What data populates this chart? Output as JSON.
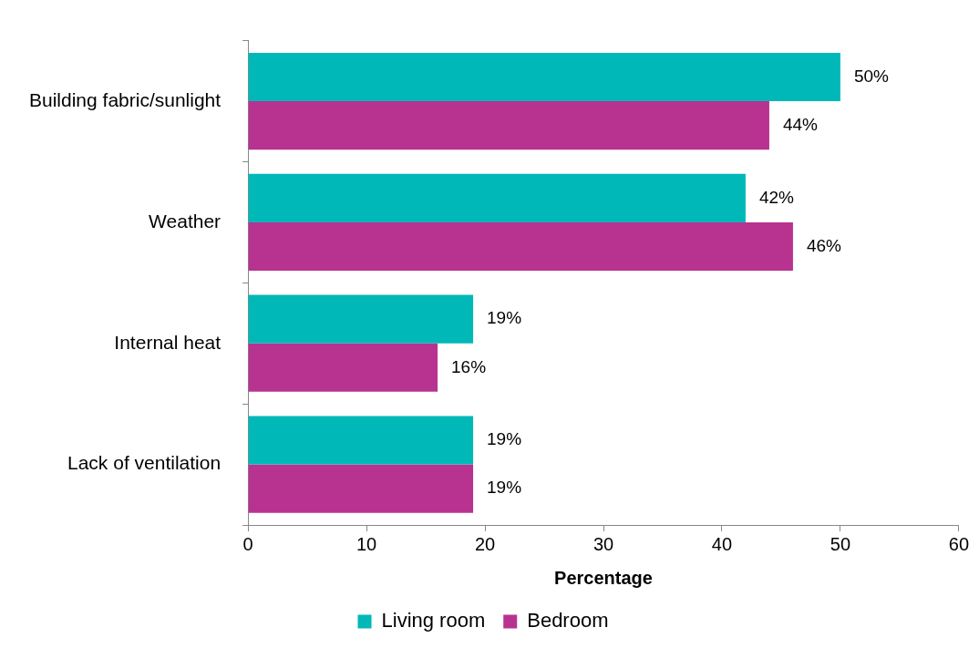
{
  "chart_data": {
    "type": "bar",
    "orientation": "horizontal",
    "xlabel": "Percentage",
    "categories": [
      "Building fabric/sunlight",
      "Weather",
      "Internal heat",
      "Lack of ventilation"
    ],
    "series": [
      {
        "name": "Living room",
        "color": "#00b8b8",
        "values": [
          50,
          42,
          19,
          19
        ],
        "value_labels": [
          "50%",
          "42%",
          "19%",
          "19%"
        ]
      },
      {
        "name": "Bedroom",
        "color": "#b83290",
        "values": [
          44,
          46,
          16,
          19
        ],
        "value_labels": [
          "44%",
          "46%",
          "16%",
          "19%"
        ]
      }
    ],
    "xlim": [
      0,
      60
    ],
    "xticks": [
      0,
      10,
      20,
      30,
      40,
      50,
      60
    ],
    "grid": false,
    "legend": "bottom"
  }
}
